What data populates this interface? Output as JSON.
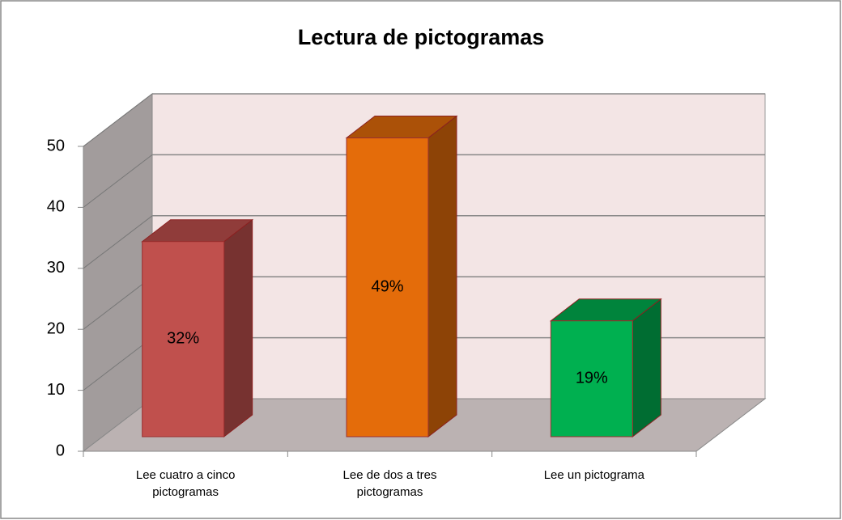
{
  "chart_data": {
    "type": "bar3d",
    "title": "Lectura de pictogramas",
    "categories": [
      "Lee cuatro a cinco pictogramas",
      "Lee de dos a tres pictogramas",
      "Lee un pictograma"
    ],
    "values": [
      32,
      49,
      19
    ],
    "value_labels": [
      "32%",
      "49%",
      "19%"
    ],
    "colors": [
      "#c0504d",
      "#e46c0a",
      "#00b050"
    ],
    "ylim": [
      0,
      50
    ],
    "yticks": [
      0,
      10,
      20,
      30,
      40,
      50
    ],
    "grid": true
  }
}
